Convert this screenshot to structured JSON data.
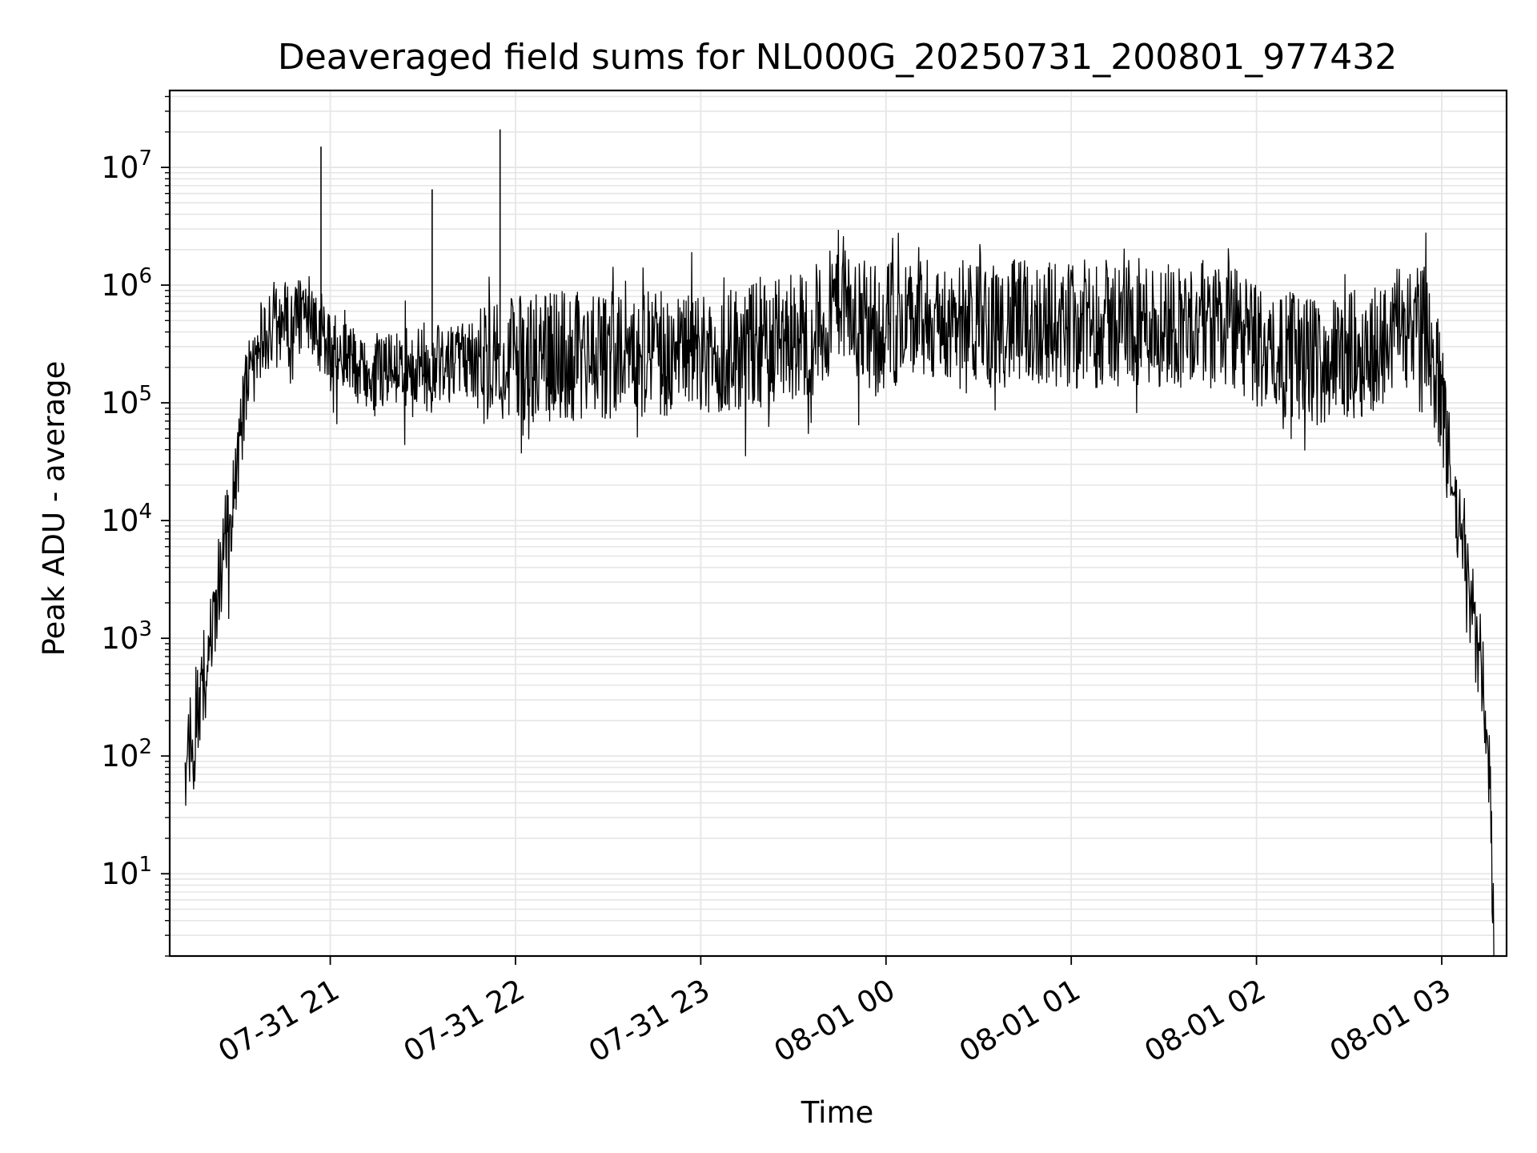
{
  "chart_data": {
    "type": "line",
    "title": "Deaveraged field sums for NL000G_20250731_200801_977432",
    "xlabel": "Time",
    "ylabel": "Peak ADU - average",
    "yscale": "log",
    "ylim": [
      2,
      45000000
    ],
    "xlim": [
      "2025-07-31 20:08",
      "2025-08-01 03:21"
    ],
    "grid": true,
    "line_color": "#000000",
    "grid_color": "#e6e6e6",
    "x_ticks": [
      {
        "value": "2025-07-31 21:00",
        "label": "07-31 21"
      },
      {
        "value": "2025-07-31 22:00",
        "label": "07-31 22"
      },
      {
        "value": "2025-07-31 23:00",
        "label": "07-31 23"
      },
      {
        "value": "2025-08-01 00:00",
        "label": "08-01 00"
      },
      {
        "value": "2025-08-01 01:00",
        "label": "08-01 01"
      },
      {
        "value": "2025-08-01 02:00",
        "label": "08-01 02"
      },
      {
        "value": "2025-08-01 03:00",
        "label": "08-01 03"
      }
    ],
    "y_ticks": [
      {
        "value": 10,
        "base": "10",
        "exp": "1"
      },
      {
        "value": 100,
        "base": "10",
        "exp": "2"
      },
      {
        "value": 1000,
        "base": "10",
        "exp": "3"
      },
      {
        "value": 10000,
        "base": "10",
        "exp": "4"
      },
      {
        "value": 100000,
        "base": "10",
        "exp": "5"
      },
      {
        "value": 1000000,
        "base": "10",
        "exp": "6"
      },
      {
        "value": 10000000,
        "base": "10",
        "exp": "7"
      }
    ],
    "series": [
      {
        "x": [
          "2025-07-31 20:13",
          "2025-07-31 20:16",
          "2025-07-31 20:18",
          "2025-07-31 20:20",
          "2025-07-31 20:22",
          "2025-07-31 20:24",
          "2025-07-31 20:26",
          "2025-07-31 20:28",
          "2025-07-31 20:30",
          "2025-07-31 20:33",
          "2025-07-31 20:36",
          "2025-07-31 20:40",
          "2025-07-31 20:45",
          "2025-07-31 20:50",
          "2025-07-31 20:55",
          "2025-07-31 20:58",
          "2025-07-31 21:00",
          "2025-07-31 21:05",
          "2025-07-31 21:10",
          "2025-07-31 21:15",
          "2025-07-31 21:20",
          "2025-07-31 21:25",
          "2025-07-31 21:30",
          "2025-07-31 21:35",
          "2025-07-31 21:40",
          "2025-07-31 21:45",
          "2025-07-31 21:50",
          "2025-07-31 21:55",
          "2025-07-31 22:00",
          "2025-07-31 22:10",
          "2025-07-31 22:20",
          "2025-07-31 22:30",
          "2025-07-31 22:40",
          "2025-07-31 22:50",
          "2025-07-31 23:00",
          "2025-07-31 23:10",
          "2025-07-31 23:20",
          "2025-07-31 23:30",
          "2025-07-31 23:40",
          "2025-07-31 23:45",
          "2025-07-31 23:50",
          "2025-08-01 00:00",
          "2025-08-01 00:10",
          "2025-08-01 00:20",
          "2025-08-01 00:30",
          "2025-08-01 00:40",
          "2025-08-01 00:50",
          "2025-08-01 01:00",
          "2025-08-01 01:10",
          "2025-08-01 01:20",
          "2025-08-01 01:30",
          "2025-08-01 01:40",
          "2025-08-01 01:50",
          "2025-08-01 02:00",
          "2025-08-01 02:10",
          "2025-08-01 02:20",
          "2025-08-01 02:30",
          "2025-08-01 02:40",
          "2025-08-01 02:45",
          "2025-08-01 02:50",
          "2025-08-01 02:55",
          "2025-08-01 03:00",
          "2025-08-01 03:04",
          "2025-08-01 03:08",
          "2025-08-01 03:12",
          "2025-08-01 03:15",
          "2025-08-01 03:17"
        ],
        "y": [
          100,
          150,
          300,
          700,
          1500,
          3000,
          6000,
          10000,
          30000,
          150000,
          300000,
          380000,
          450000,
          520000,
          400000,
          300000,
          280000,
          250000,
          200000,
          180000,
          190000,
          200000,
          210000,
          220000,
          215000,
          220000,
          230000,
          225000,
          230000,
          240000,
          250000,
          260000,
          265000,
          270000,
          270000,
          290000,
          320000,
          360000,
          420000,
          900000,
          450000,
          470000,
          480000,
          470000,
          460000,
          470000,
          480000,
          460000,
          470000,
          480000,
          490000,
          460000,
          470000,
          300000,
          260000,
          220000,
          250000,
          300000,
          400000,
          500000,
          450000,
          100000,
          15000,
          3000,
          800,
          120,
          3
        ]
      }
    ],
    "spikes": [
      {
        "x": "2025-07-31 20:57",
        "y": 15000000
      },
      {
        "x": "2025-07-31 21:33",
        "y": 6500000
      },
      {
        "x": "2025-07-31 21:55",
        "y": 21000000
      }
    ]
  }
}
